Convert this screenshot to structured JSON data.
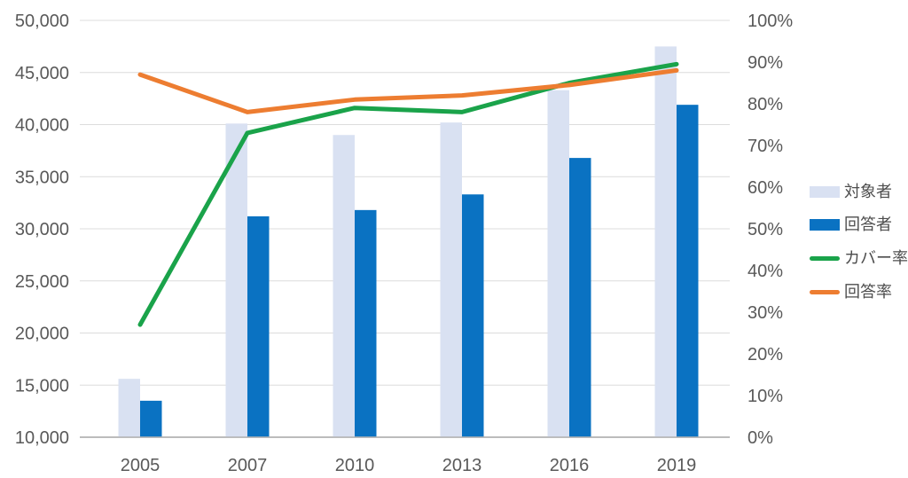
{
  "chart_data": {
    "type": "combo-bar-line",
    "background_color": "#ffffff",
    "gridline_color": "#dcdcdc",
    "axis_line_color": "#b3b3b3",
    "text_color": "#595959",
    "grid": true,
    "legend_position": "right",
    "categories": [
      "2005",
      "2007",
      "2010",
      "2013",
      "2016",
      "2019"
    ],
    "bar_series": [
      {
        "key": "target-group",
        "name": "対象者",
        "color": "#d9e1f2",
        "axis": "left",
        "values": [
          15600,
          40100,
          39000,
          40200,
          43300,
          47500
        ]
      },
      {
        "key": "respondents",
        "name": "回答者",
        "color": "#0a72c2",
        "axis": "left",
        "values": [
          13500,
          31200,
          31800,
          33300,
          36800,
          41900
        ]
      }
    ],
    "line_series": [
      {
        "key": "coverage-rate",
        "name": "カバー率",
        "color": "#1aa34a",
        "axis": "right",
        "values": [
          27,
          73,
          79,
          78,
          85,
          89.5
        ]
      },
      {
        "key": "response-rate",
        "name": "回答率",
        "color": "#ed7d31",
        "axis": "right",
        "values": [
          87,
          78,
          81,
          82,
          84.5,
          88
        ]
      }
    ],
    "left_axis": {
      "min": 10000,
      "max": 50000,
      "step": 5000,
      "tick_labels": [
        "10,000",
        "15,000",
        "20,000",
        "25,000",
        "30,000",
        "35,000",
        "40,000",
        "45,000",
        "50,000"
      ]
    },
    "right_axis": {
      "min": 0,
      "max": 100,
      "step": 10,
      "tick_labels": [
        "0%",
        "10%",
        "20%",
        "30%",
        "40%",
        "50%",
        "60%",
        "70%",
        "80%",
        "90%",
        "100%"
      ]
    }
  }
}
